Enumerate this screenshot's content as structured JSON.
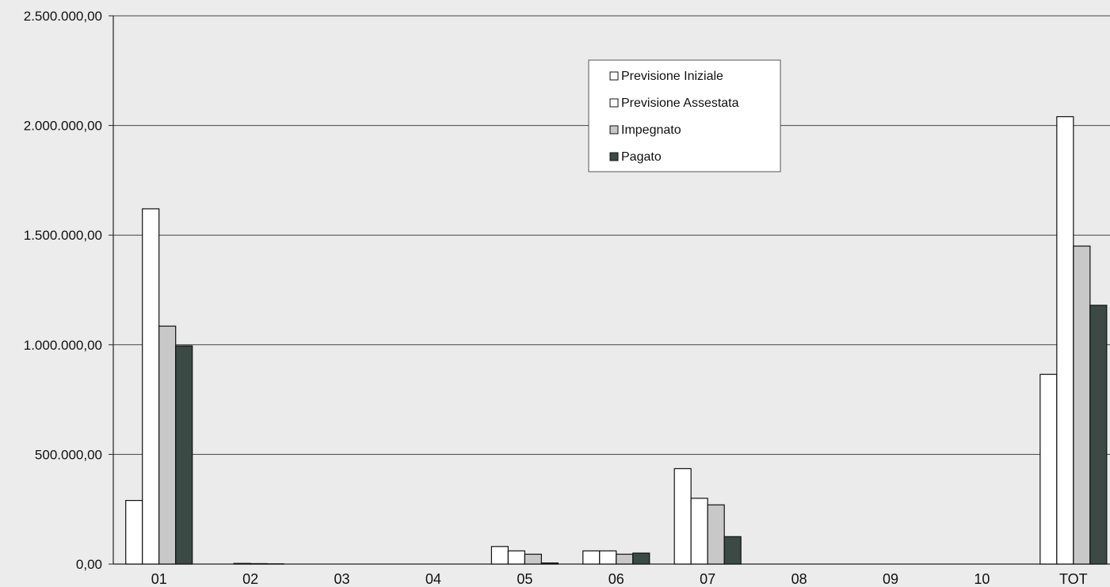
{
  "chart_data": {
    "type": "bar",
    "title": "",
    "xlabel": "",
    "ylabel": "",
    "categories": [
      "01",
      "02",
      "03",
      "04",
      "05",
      "06",
      "07",
      "08",
      "09",
      "10",
      "TOT"
    ],
    "ylim": [
      0,
      2500000
    ],
    "yticks": [
      0,
      500000,
      1000000,
      1500000,
      2000000,
      2500000
    ],
    "ytick_labels": [
      "0,00",
      "500.000,00",
      "1.000.000,00",
      "1.500.000,00",
      "2.000.000,00",
      "2.500.000,00"
    ],
    "grid": "horizontal",
    "legend_position": "top-center",
    "series": [
      {
        "name": "Previsione Iniziale",
        "color": "#ffffff",
        "values": [
          290000,
          0,
          0,
          0,
          80000,
          60000,
          435000,
          0,
          0,
          0,
          865000
        ]
      },
      {
        "name": "Previsione Assestata",
        "color": "#ffffff",
        "values": [
          1620000,
          3000,
          0,
          0,
          60000,
          60000,
          300000,
          0,
          0,
          0,
          2040000
        ]
      },
      {
        "name": "Impegnato",
        "color": "#c8c8c8",
        "values": [
          1085000,
          2000,
          0,
          0,
          45000,
          45000,
          270000,
          0,
          0,
          0,
          1450000
        ]
      },
      {
        "name": "Pagato",
        "color": "#3b4a44",
        "values": [
          995000,
          1000,
          0,
          0,
          5000,
          50000,
          125000,
          0,
          0,
          0,
          1180000
        ]
      }
    ]
  }
}
